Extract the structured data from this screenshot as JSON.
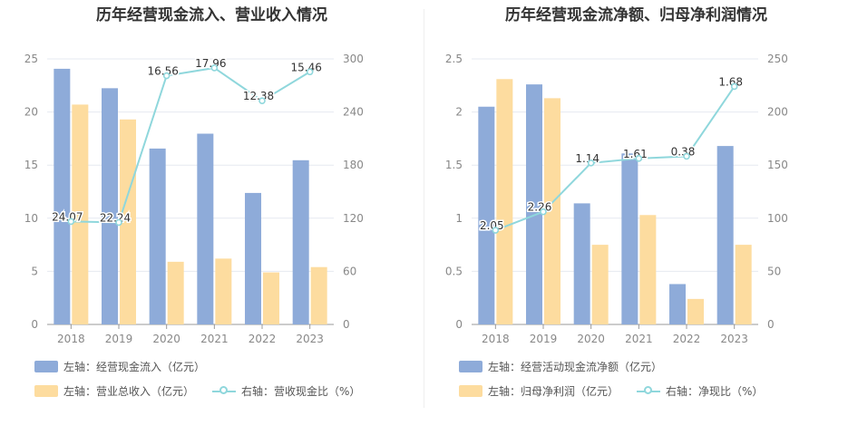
{
  "chart_data": [
    {
      "type": "bar",
      "title": "历年经营现金流入、营业收入情况",
      "categories": [
        "2018",
        "2019",
        "2020",
        "2021",
        "2022",
        "2023"
      ],
      "series": [
        {
          "name": "左轴：经营现金流入（亿元）",
          "axis": "left",
          "type": "bar",
          "color": "#8eabd9",
          "values": [
            24.07,
            22.24,
            16.56,
            17.96,
            12.38,
            15.46
          ],
          "labels": [
            "24.07",
            "22.24",
            "16.56",
            "17.96",
            "12.38",
            "15.46"
          ]
        },
        {
          "name": "左轴：营业总收入（亿元）",
          "axis": "left",
          "type": "bar",
          "color": "#fddc9f",
          "values": [
            20.7,
            19.3,
            5.9,
            6.2,
            4.9,
            5.4
          ]
        },
        {
          "name": "右轴：营收现金比（%）",
          "axis": "right",
          "type": "line",
          "color": "#8fd7dc",
          "values": [
            116.3,
            115.2,
            281.0,
            289.8,
            252.7,
            285.4
          ]
        }
      ],
      "ylim_left": [
        0,
        25
      ],
      "yticks_left": [
        "0",
        "5",
        "10",
        "15",
        "20",
        "25"
      ],
      "ylim_right": [
        0,
        300
      ],
      "yticks_right": [
        "0",
        "60",
        "120",
        "180",
        "240",
        "300"
      ],
      "legend_position": "bottom-left"
    },
    {
      "type": "bar",
      "title": "历年经营现金流净额、归母净利润情况",
      "categories": [
        "2018",
        "2019",
        "2020",
        "2021",
        "2022",
        "2023"
      ],
      "series": [
        {
          "name": "左轴：经营活动现金流净额（亿元）",
          "axis": "left",
          "type": "bar",
          "color": "#8eabd9",
          "values": [
            2.05,
            2.26,
            1.14,
            1.61,
            0.38,
            1.68
          ],
          "labels": [
            "2.05",
            "2.26",
            "1.14",
            "1.61",
            "0.38",
            "1.68"
          ]
        },
        {
          "name": "左轴：归母净利润（亿元）",
          "axis": "left",
          "type": "bar",
          "color": "#fddc9f",
          "values": [
            2.31,
            2.13,
            0.75,
            1.03,
            0.24,
            0.75
          ]
        },
        {
          "name": "右轴：净现比（%）",
          "axis": "right",
          "type": "line",
          "color": "#8fd7dc",
          "values": [
            88.7,
            106.1,
            152.0,
            156.3,
            158.3,
            224.0
          ]
        }
      ],
      "ylim_left": [
        0,
        2.5
      ],
      "yticks_left": [
        "0",
        "0.5",
        "1",
        "1.5",
        "2",
        "2.5"
      ],
      "ylim_right": [
        0,
        250
      ],
      "yticks_right": [
        "0",
        "50",
        "100",
        "150",
        "200",
        "250"
      ],
      "legend_position": "bottom-left"
    }
  ]
}
